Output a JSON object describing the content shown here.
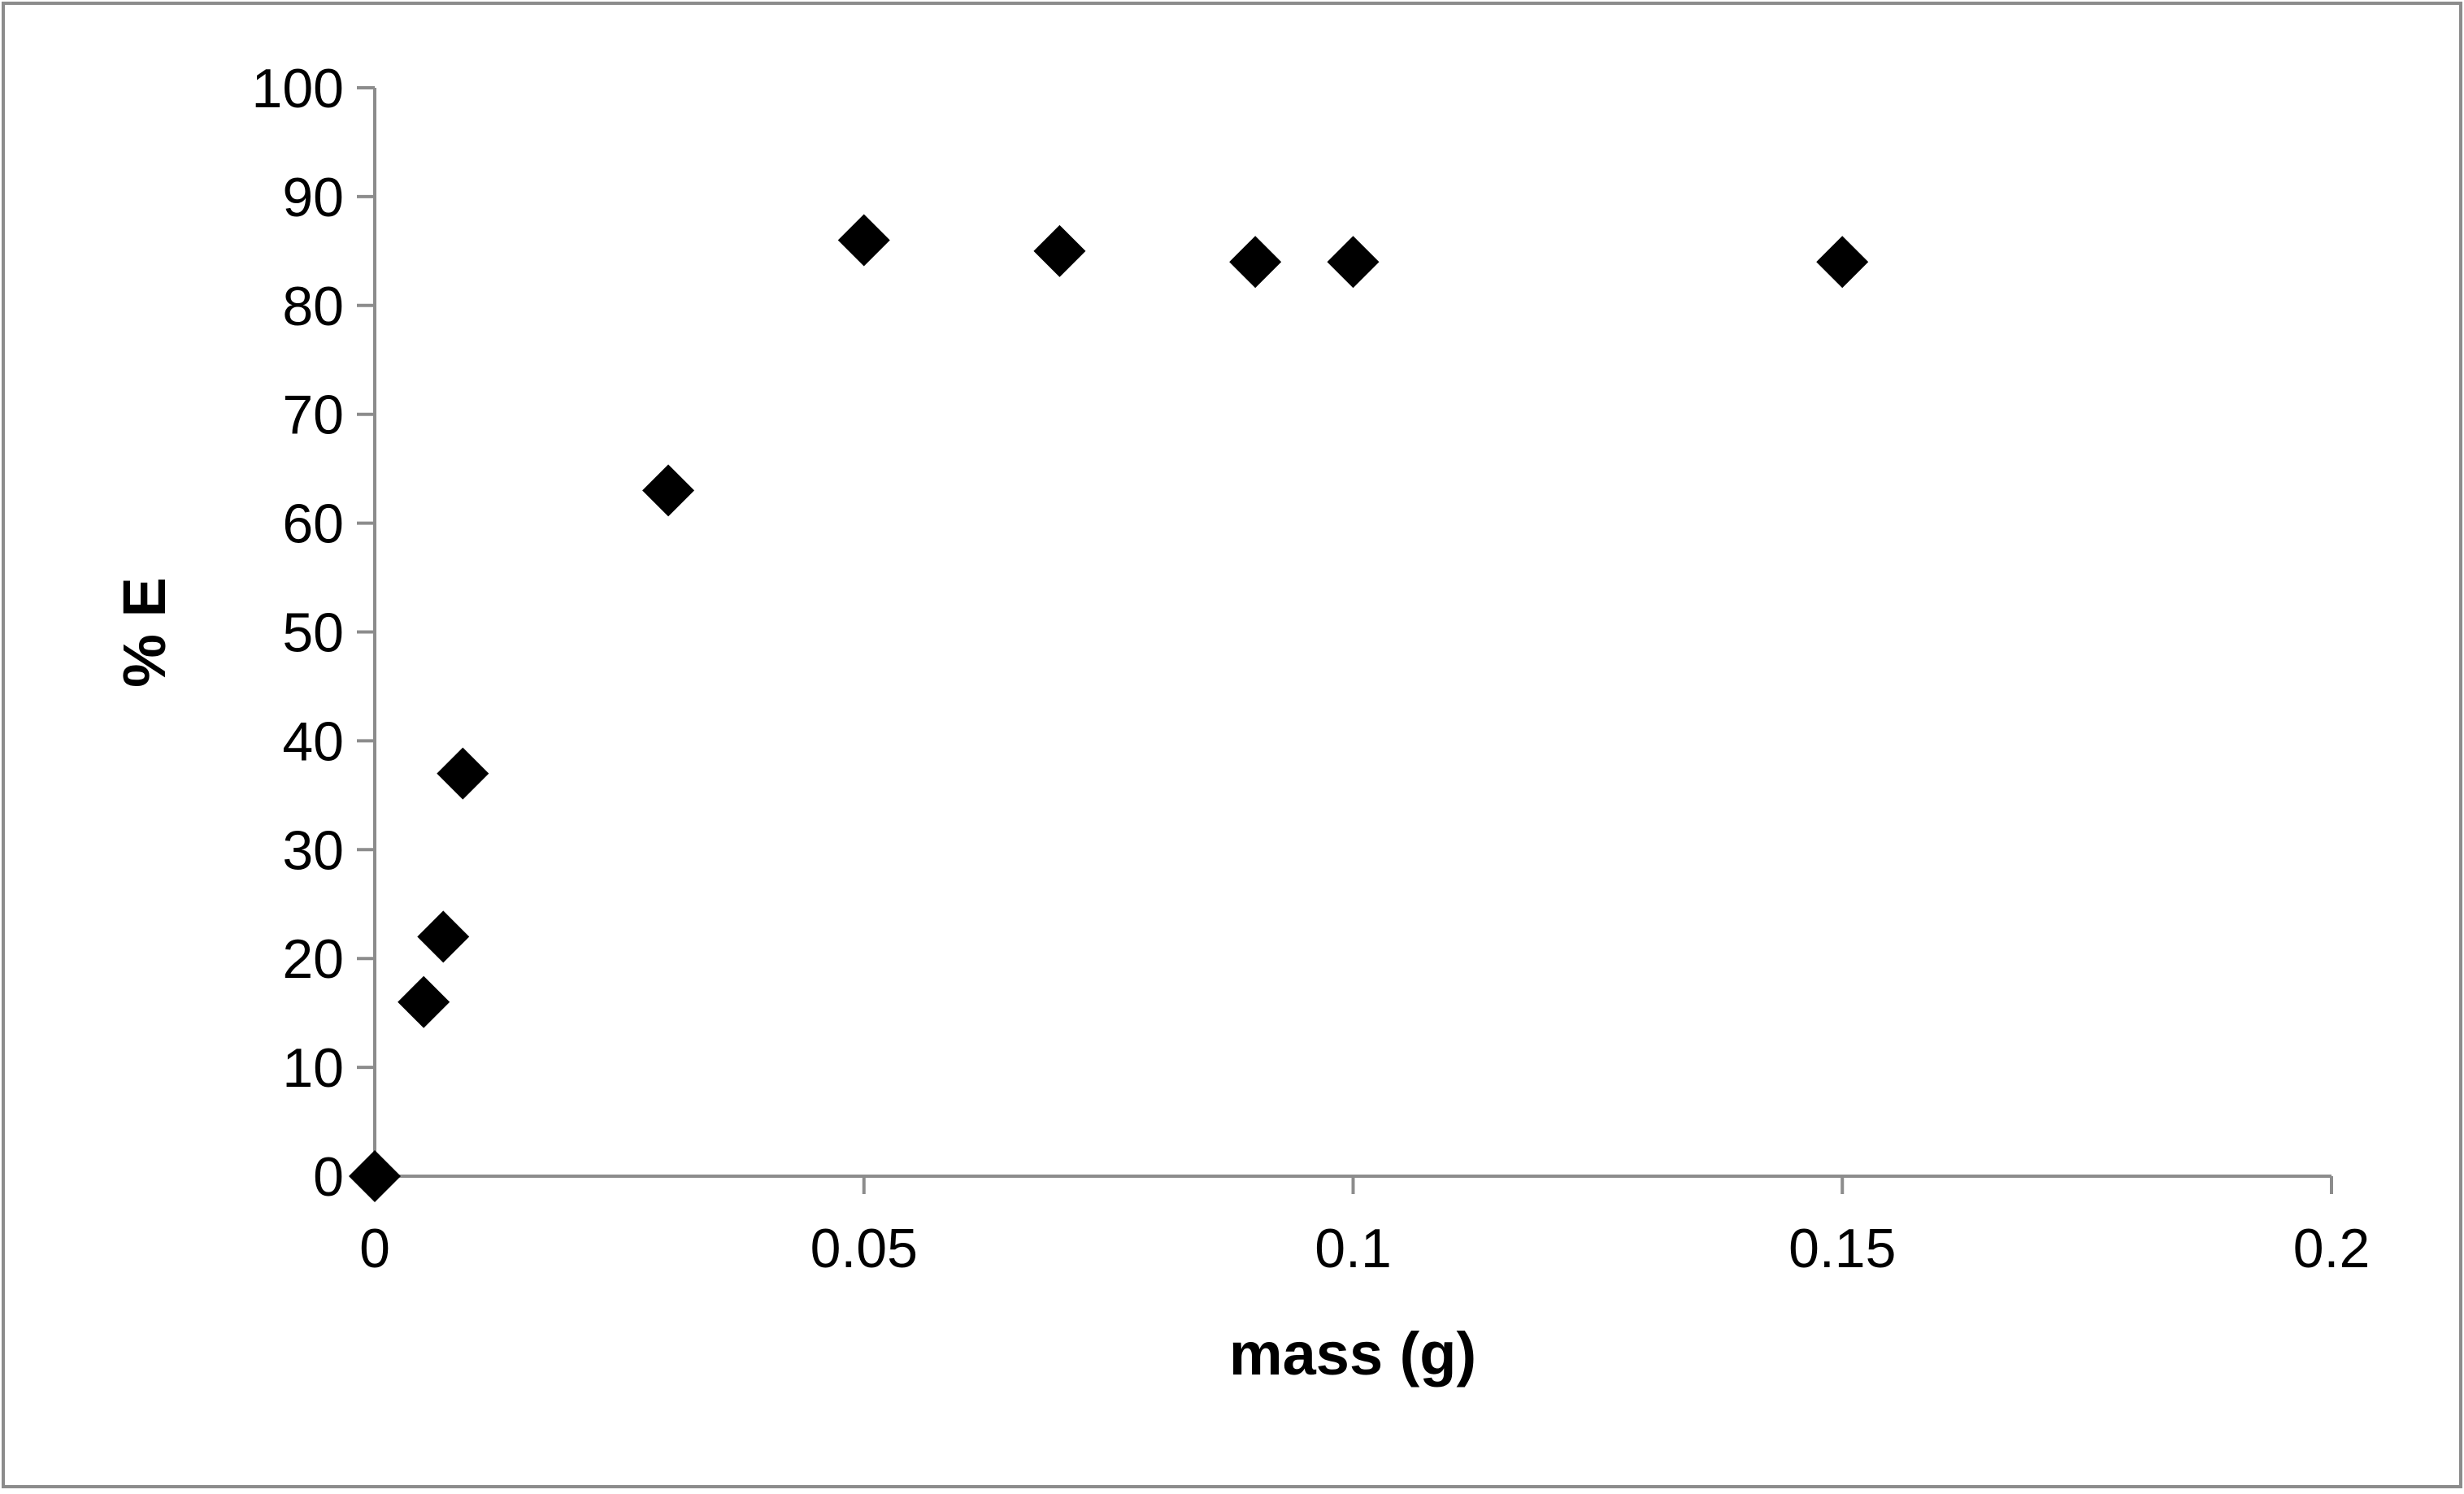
{
  "chart_data": {
    "type": "scatter",
    "title": "",
    "xlabel": "mass (g)",
    "ylabel": "% E",
    "xlim": [
      0,
      0.2
    ],
    "ylim": [
      0,
      100
    ],
    "xticks": [
      0,
      0.05,
      0.1,
      0.15,
      0.2
    ],
    "xtick_labels": [
      "0",
      "0.05",
      "0.1",
      "0.15",
      "0.2"
    ],
    "yticks": [
      0,
      10,
      20,
      30,
      40,
      50,
      60,
      70,
      80,
      90,
      100
    ],
    "ytick_labels": [
      "0",
      "10",
      "20",
      "30",
      "40",
      "50",
      "60",
      "70",
      "80",
      "90",
      "100"
    ],
    "grid": false,
    "legend": "none",
    "marker": "diamond",
    "colors": {
      "marker": "#000000",
      "axis": "#8c8c8c",
      "frame": "#8c8c8c",
      "text": "#000000"
    },
    "series": [
      {
        "x": [
          0,
          0.005,
          0.007,
          0.009,
          0.03,
          0.05,
          0.07,
          0.09,
          0.1,
          0.15
        ],
        "y": [
          0,
          16,
          22,
          37,
          63,
          86,
          85,
          84,
          84,
          84
        ]
      }
    ]
  }
}
